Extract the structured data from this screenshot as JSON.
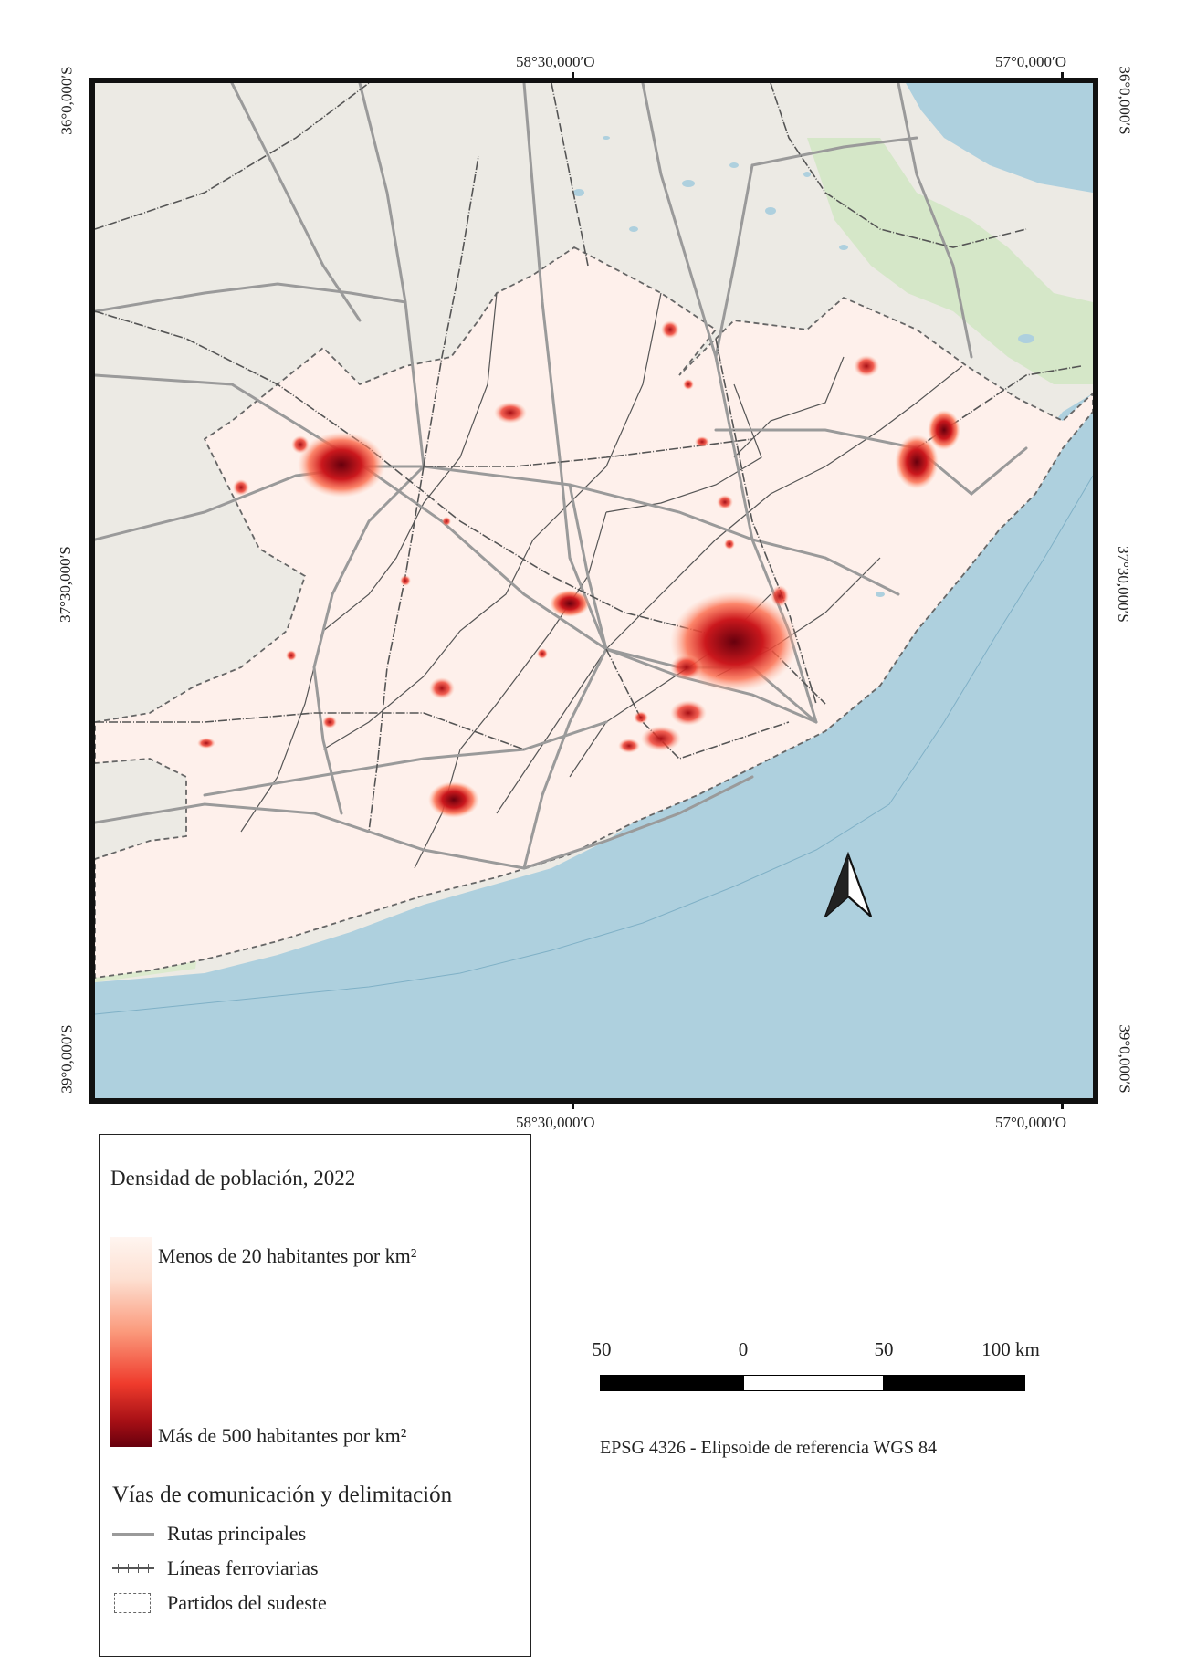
{
  "coords": {
    "top_left_lon": "58°30,000′O",
    "top_right_lon": "57°0,000′O",
    "bottom_left_lon": "58°30,000′O",
    "bottom_right_lon": "57°0,000′O",
    "left_top_lat": "36°0,000′S",
    "left_mid_lat": "37°30,000′S",
    "left_bottom_lat": "39°0,000′S",
    "right_top_lat": "36°0,000′S",
    "right_mid_lat": "37°30,000′S",
    "right_bottom_lat": "39°0,000′S"
  },
  "colors": {
    "sea": "#aed0de",
    "land_base": "#eceae4",
    "study_area": "#fef0eb",
    "density_low": "#fff5f0",
    "density_mid": "#ef3b2c",
    "density_high": "#67000d",
    "road": "#9a9a9a",
    "rail": "#555555",
    "boundary_dashed": "#666666"
  },
  "legend": {
    "title": "Densidad de población, 2022",
    "ramp_low": "Menos de 20 habitantes por km²",
    "ramp_high": "Más de 500 habitantes por km²",
    "section_title": "Vías de comunicación y delimitación",
    "roads_label": "Rutas principales",
    "rail_label": "Líneas ferroviarias",
    "districts_label": "Partidos del sudeste"
  },
  "scale_bar": {
    "labels": [
      "50",
      "0",
      "50",
      "100 km"
    ]
  },
  "crs_text": "EPSG 4326 - Elipsoide de referencia WGS 84",
  "north_arrow_icon": "north-arrow-icon"
}
